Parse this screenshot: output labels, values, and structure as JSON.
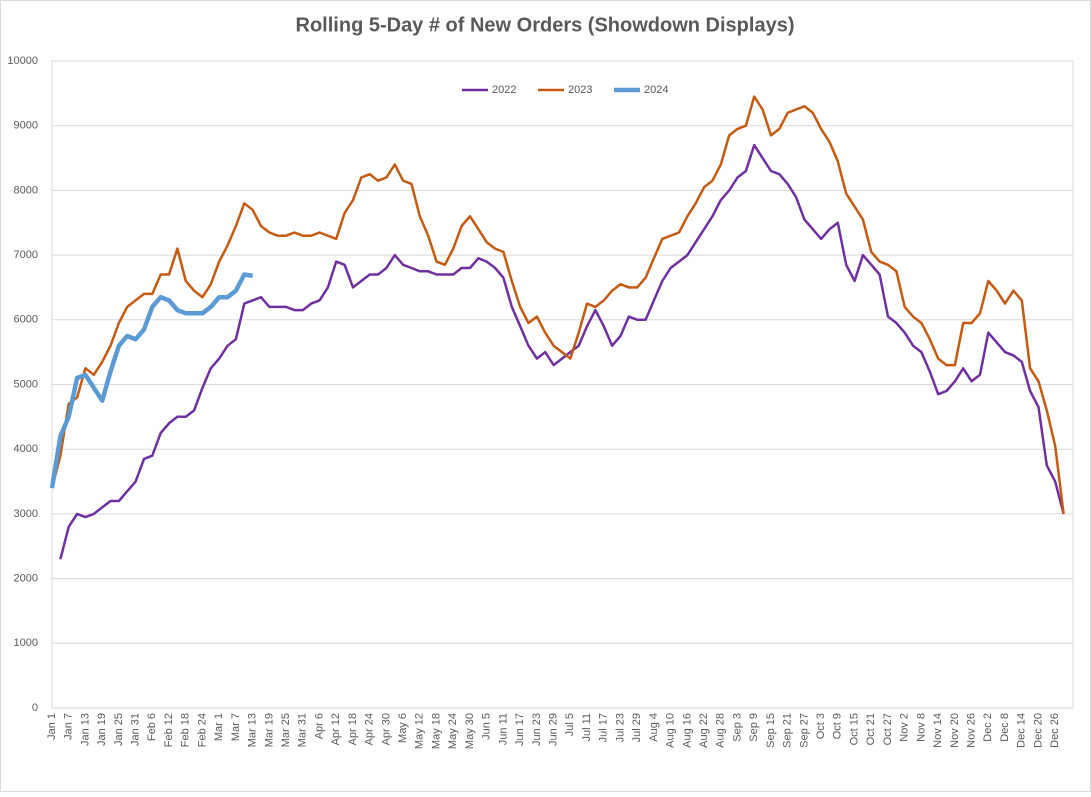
{
  "chart_data": {
    "type": "line",
    "title": "Rolling 5-Day # of New Orders (Showdown Displays)",
    "categories": [
      "Jan 1",
      null,
      "Jan 7",
      null,
      "Jan 13",
      null,
      "Jan 19",
      null,
      "Jan 25",
      null,
      "Jan 31",
      null,
      "Feb 6",
      null,
      "Feb 12",
      null,
      "Feb 18",
      null,
      "Feb 24",
      null,
      "Mar 1",
      null,
      "Mar 7",
      null,
      "Mar 13",
      null,
      "Mar 19",
      null,
      "Mar 25",
      null,
      "Mar 31",
      null,
      "Apr 6",
      null,
      "Apr 12",
      null,
      "Apr 18",
      null,
      "Apr 24",
      null,
      "Apr 30",
      null,
      "May 6",
      null,
      "May 12",
      null,
      "May 18",
      null,
      "May 24",
      null,
      "May 30",
      null,
      "Jun 5",
      null,
      "Jun 11",
      null,
      "Jun 17",
      null,
      "Jun 23",
      null,
      "Jun 29",
      null,
      "Jul 5",
      null,
      "Jul 11",
      null,
      "Jul 17",
      null,
      "Jul 23",
      null,
      "Jul 29",
      null,
      "Aug 4",
      null,
      "Aug 10",
      null,
      "Aug 16",
      null,
      "Aug 22",
      null,
      "Aug 28",
      null,
      "Sep 3",
      null,
      "Sep 9",
      null,
      "Sep 15",
      null,
      "Sep 21",
      null,
      "Sep 27",
      null,
      "Oct 3",
      null,
      "Oct 9",
      null,
      "Oct 15",
      null,
      "Oct 21",
      null,
      "Oct 27",
      null,
      "Nov 2",
      null,
      "Nov 8",
      null,
      "Nov 14",
      null,
      "Nov 20",
      null,
      "Nov 26",
      null,
      "Dec 2",
      null,
      "Dec 8",
      null,
      "Dec 14",
      null,
      "Dec 20",
      null,
      "Dec 26",
      null
    ],
    "series": [
      {
        "name": "2022",
        "color": "#7030a0",
        "width": 2.5,
        "values": [
          null,
          2300,
          2800,
          3000,
          2950,
          3000,
          3100,
          3200,
          3200,
          3350,
          3500,
          3850,
          3900,
          4250,
          4400,
          4500,
          4500,
          4600,
          4950,
          5250,
          5400,
          5600,
          5700,
          6250,
          6300,
          6350,
          6200,
          6200,
          6200,
          6150,
          6150,
          6250,
          6300,
          6500,
          6900,
          6850,
          6500,
          6600,
          6700,
          6700,
          6800,
          7000,
          6850,
          6800,
          6750,
          6750,
          6700,
          6700,
          6700,
          6800,
          6800,
          6950,
          6900,
          6800,
          6650,
          6200,
          5900,
          5600,
          5400,
          5500,
          5300,
          5400,
          5500,
          5600,
          5900,
          6150,
          5900,
          5600,
          5750,
          6050,
          6000,
          6000,
          6300,
          6600,
          6800,
          6900,
          7000,
          7200,
          7400,
          7600,
          7850,
          8000,
          8200,
          8300,
          8700,
          8500,
          8300,
          8250,
          8100,
          7900,
          7550,
          7400,
          7250,
          7400,
          7500,
          6850,
          6600,
          7000,
          6850,
          6700,
          6050,
          5950,
          5800,
          5600,
          5500,
          5200,
          4850,
          4900,
          5050,
          5250,
          5050,
          5150,
          5800,
          5650,
          5500,
          5450,
          5350,
          4900,
          4650,
          3750,
          3500,
          3000
        ]
      },
      {
        "name": "2023",
        "color": "#c55a11",
        "width": 2.5,
        "values": [
          3400,
          3900,
          4700,
          4800,
          5250,
          5150,
          5350,
          5600,
          5950,
          6200,
          6300,
          6400,
          6400,
          6700,
          6700,
          7100,
          6600,
          6450,
          6350,
          6550,
          6900,
          7150,
          7450,
          7800,
          7700,
          7450,
          7350,
          7300,
          7300,
          7350,
          7300,
          7300,
          7350,
          7300,
          7250,
          7650,
          7850,
          8200,
          8250,
          8150,
          8200,
          8400,
          8150,
          8100,
          7600,
          7300,
          6900,
          6850,
          7100,
          7450,
          7600,
          7400,
          7200,
          7100,
          7050,
          6600,
          6200,
          5950,
          6050,
          5800,
          5600,
          5500,
          5400,
          5800,
          6250,
          6200,
          6300,
          6450,
          6550,
          6500,
          6500,
          6650,
          6950,
          7250,
          7300,
          7350,
          7600,
          7800,
          8050,
          8150,
          8400,
          8850,
          8950,
          9000,
          9450,
          9250,
          8850,
          8950,
          9200,
          9250,
          9300,
          9200,
          8950,
          8750,
          8450,
          7950,
          7750,
          7550,
          7050,
          6900,
          6850,
          6750,
          6200,
          6050,
          5950,
          5700,
          5400,
          5300,
          5300,
          5950,
          5950,
          6100,
          6600,
          6450,
          6250,
          6450,
          6300,
          5250,
          5050,
          4600,
          4050,
          3000
        ]
      },
      {
        "name": "2024",
        "color": "#5b9bd5",
        "width": 4.5,
        "values": [
          3400,
          4200,
          4500,
          5100,
          5150,
          4950,
          4750,
          5200,
          5600,
          5750,
          5700,
          5850,
          6200,
          6350,
          6300,
          6150,
          6100,
          6100,
          6100,
          6200,
          6350,
          6350,
          6450,
          6700,
          6680,
          null,
          null,
          null,
          null,
          null,
          null,
          null,
          null,
          null,
          null,
          null,
          null,
          null,
          null,
          null,
          null,
          null,
          null,
          null,
          null,
          null,
          null,
          null,
          null,
          null,
          null,
          null,
          null,
          null,
          null,
          null,
          null,
          null,
          null,
          null,
          null,
          null,
          null,
          null,
          null,
          null,
          null,
          null,
          null,
          null,
          null,
          null,
          null,
          null,
          null,
          null,
          null,
          null,
          null,
          null,
          null,
          null,
          null,
          null,
          null,
          null,
          null,
          null,
          null,
          null,
          null,
          null,
          null,
          null,
          null,
          null,
          null,
          null,
          null,
          null,
          null,
          null,
          null,
          null,
          null,
          null,
          null,
          null,
          null,
          null,
          null,
          null,
          null,
          null,
          null,
          null,
          null,
          null,
          null,
          null,
          null,
          null
        ]
      }
    ],
    "ylim": [
      0,
      10000
    ],
    "yticks": [
      0,
      1000,
      2000,
      3000,
      4000,
      5000,
      6000,
      7000,
      8000,
      9000,
      10000
    ],
    "grid": true,
    "legend": "top"
  }
}
